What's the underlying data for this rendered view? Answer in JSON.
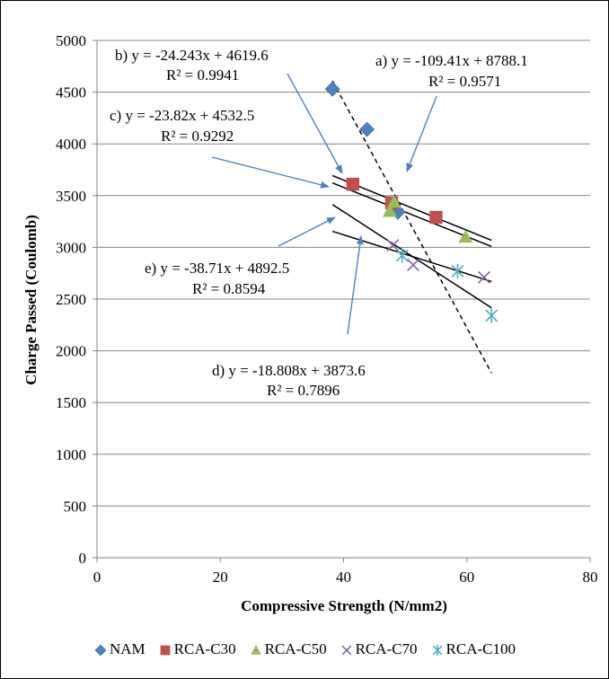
{
  "chart_data": {
    "type": "scatter",
    "xlabel": "Compressive Strength (N/mm2)",
    "ylabel": "Charge Passed (Coulomb)",
    "xlim": [
      0,
      80
    ],
    "ylim": [
      0,
      5000
    ],
    "x_ticks": [
      0,
      20,
      40,
      60,
      80
    ],
    "y_ticks": [
      0,
      500,
      1000,
      1500,
      2000,
      2500,
      3000,
      3500,
      4000,
      4500,
      5000
    ],
    "grid": "horizontal",
    "legend_position": "bottom",
    "series": [
      {
        "name": "NAM",
        "color": "#4f81bd",
        "marker": "diamond",
        "points": [
          [
            38.2,
            4530
          ],
          [
            43.8,
            4140
          ],
          [
            48.8,
            3340
          ]
        ]
      },
      {
        "name": "RCA-C30",
        "color": "#c0504d",
        "marker": "square",
        "points": [
          [
            41.5,
            3610
          ],
          [
            47.8,
            3430
          ],
          [
            55.0,
            3290
          ]
        ]
      },
      {
        "name": "RCA-C50",
        "color": "#9bbb59",
        "marker": "triangle",
        "points": [
          [
            47.5,
            3350
          ],
          [
            48.2,
            3440
          ],
          [
            59.8,
            3100
          ]
        ]
      },
      {
        "name": "RCA-C70",
        "color": "#8064a2",
        "marker": "x",
        "points": [
          [
            48.0,
            3020
          ],
          [
            51.3,
            2830
          ],
          [
            62.8,
            2710
          ]
        ]
      },
      {
        "name": "RCA-C100",
        "color": "#4bacc6",
        "marker": "asterisk",
        "points": [
          [
            49.5,
            2920
          ],
          [
            58.5,
            2770
          ],
          [
            64.0,
            2340
          ]
        ]
      }
    ],
    "trendlines": [
      {
        "id": "a",
        "slope": -109.41,
        "intercept": 8788.1,
        "x_range": [
          38.2,
          64
        ],
        "style": "dashed",
        "equation": "a) y = -109.41x + 8788.1",
        "r2": "R² = 0.9571"
      },
      {
        "id": "b",
        "slope": -24.243,
        "intercept": 4619.6,
        "x_range": [
          38.2,
          64
        ],
        "style": "solid",
        "equation": "b) y = -24.243x + 4619.6",
        "r2": "R² = 0.9941"
      },
      {
        "id": "c",
        "slope": -23.82,
        "intercept": 4532.5,
        "x_range": [
          38.2,
          64
        ],
        "style": "solid",
        "equation": "c) y = -23.82x + 4532.5",
        "r2": "R² = 0.9292"
      },
      {
        "id": "d",
        "slope": -18.808,
        "intercept": 3873.6,
        "x_range": [
          38.2,
          64
        ],
        "style": "solid",
        "equation": "d) y = -18.808x + 3873.6",
        "r2": "R² = 0.7896"
      },
      {
        "id": "e",
        "slope": -38.71,
        "intercept": 4892.5,
        "x_range": [
          38.2,
          64
        ],
        "style": "solid",
        "equation": "e) y = -38.71x + 4892.5",
        "r2": "R² = 0.8594"
      }
    ]
  }
}
